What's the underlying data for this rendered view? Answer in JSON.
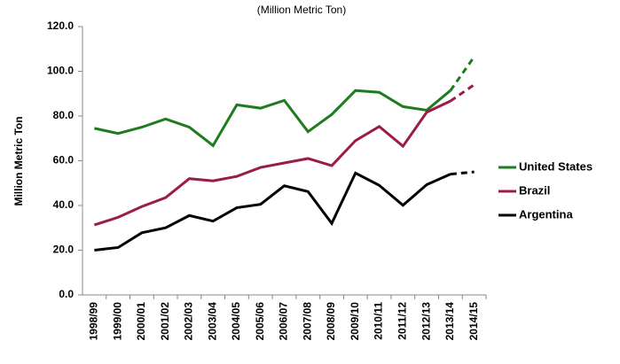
{
  "chart_data": {
    "type": "line",
    "subtitle": "(Million Metric Ton)",
    "y_label": "Million Metric Ton",
    "categories": [
      "1998/99",
      "1999/00",
      "2000/01",
      "2001/02",
      "2002/03",
      "2003/04",
      "2004/05",
      "2005/06",
      "2006/07",
      "2007/08",
      "2008/09",
      "2009/10",
      "2010/11",
      "2011/12",
      "2012/13",
      "2013/14",
      "2014/15"
    ],
    "series": [
      {
        "name": "United States",
        "color": "#1e7b1e",
        "values": [
          74.5,
          72.2,
          75,
          78.7,
          75,
          66.8,
          85,
          83.5,
          87,
          73,
          80.7,
          91.4,
          90.6,
          84.2,
          82.6,
          91.4,
          106.5
        ]
      },
      {
        "name": "Brazil",
        "color": "#9b1b4b",
        "values": [
          31.3,
          34.7,
          39.5,
          43.5,
          52,
          51,
          53,
          57,
          59,
          61,
          57.8,
          69,
          75.3,
          66.5,
          81.7,
          86.7,
          94
        ]
      },
      {
        "name": "Argentina",
        "color": "#000000",
        "values": [
          20,
          21.2,
          27.8,
          30,
          35.5,
          33,
          39,
          40.5,
          48.8,
          46.2,
          32,
          54.5,
          49,
          40.1,
          49.3,
          54,
          55
        ]
      }
    ],
    "ylim": [
      0,
      120
    ],
    "yticks": [
      {
        "value": 0,
        "label": "0.0"
      },
      {
        "value": 20,
        "label": "20.0"
      },
      {
        "value": 40,
        "label": "40.0"
      },
      {
        "value": 60,
        "label": "60.0"
      },
      {
        "value": 80,
        "label": "80.0"
      },
      {
        "value": 100,
        "label": "100.0"
      },
      {
        "value": 120,
        "label": "120.0"
      }
    ],
    "dashed_last_segment": true,
    "legend": "right"
  }
}
